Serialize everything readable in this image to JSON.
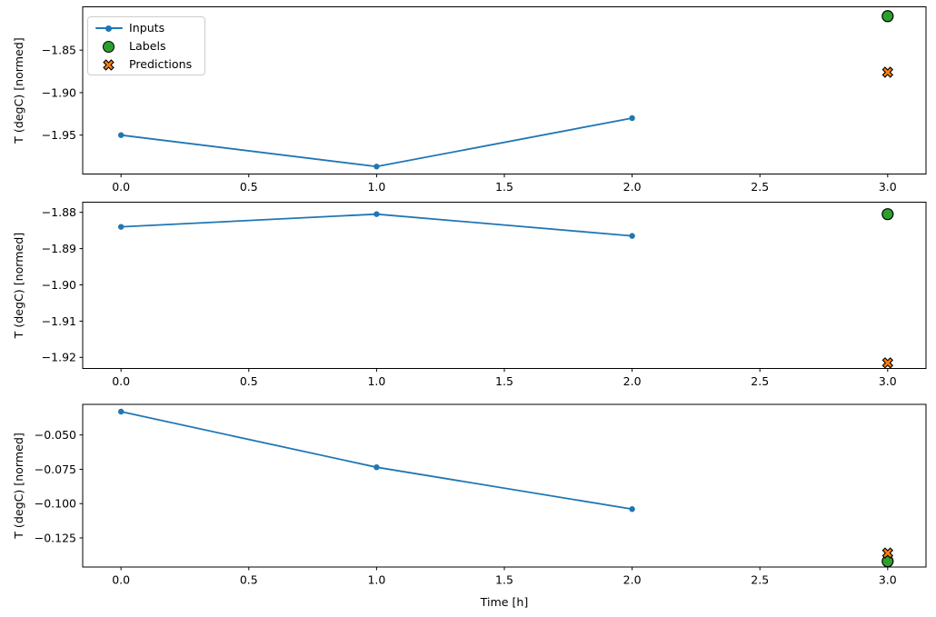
{
  "figure": {
    "xlabel": "Time [h]",
    "ylabel": "T (degC) [normed]",
    "background": "#ffffff"
  },
  "colors": {
    "inputs": "#1f77b4",
    "labels": "#2ca02c",
    "predictions": "#ff7f0e",
    "marker_edge": "#000000",
    "axis": "#000000",
    "legend_border": "#cccccc"
  },
  "legend": {
    "position": "upper left",
    "items": [
      {
        "label": "Inputs",
        "marker": "line-dot",
        "color_key": "inputs"
      },
      {
        "label": "Labels",
        "marker": "circle",
        "color_key": "labels"
      },
      {
        "label": "Predictions",
        "marker": "X",
        "color_key": "predictions"
      }
    ]
  },
  "chart_data": [
    {
      "type": "line",
      "title": "",
      "xlabel": "",
      "ylabel": "T (degC) [normed]",
      "xlim": [
        -0.15,
        3.15
      ],
      "ylim": [
        -1.996,
        -1.799
      ],
      "grid": false,
      "xticks": {
        "values": [
          0,
          0.5,
          1,
          1.5,
          2,
          2.5,
          3
        ],
        "labels": [
          "0.0",
          "0.5",
          "1.0",
          "1.5",
          "2.0",
          "2.5",
          "3.0"
        ]
      },
      "yticks": {
        "values": [
          -1.85,
          -1.9,
          -1.95
        ],
        "labels": [
          "−1.85",
          "−1.90",
          "−1.95"
        ]
      },
      "series": [
        {
          "name": "Inputs",
          "kind": "line",
          "marker": "dot",
          "color": "#1f77b4",
          "x": [
            0,
            1,
            2
          ],
          "y": [
            -1.95,
            -1.987,
            -1.93
          ]
        },
        {
          "name": "Labels",
          "kind": "scatter",
          "marker": "circle",
          "color": "#2ca02c",
          "x": [
            3
          ],
          "y": [
            -1.81
          ]
        },
        {
          "name": "Predictions",
          "kind": "scatter",
          "marker": "X",
          "color": "#ff7f0e",
          "x": [
            3
          ],
          "y": [
            -1.876
          ]
        }
      ]
    },
    {
      "type": "line",
      "title": "",
      "xlabel": "",
      "ylabel": "T (degC) [normed]",
      "xlim": [
        -0.15,
        3.15
      ],
      "ylim": [
        -1.9231,
        -1.8772
      ],
      "grid": false,
      "xticks": {
        "values": [
          0,
          0.5,
          1,
          1.5,
          2,
          2.5,
          3
        ],
        "labels": [
          "0.0",
          "0.5",
          "1.0",
          "1.5",
          "2.0",
          "2.5",
          "3.0"
        ]
      },
      "yticks": {
        "values": [
          -1.88,
          -1.89,
          -1.9,
          -1.91,
          -1.92
        ],
        "labels": [
          "−1.88",
          "−1.89",
          "−1.90",
          "−1.91",
          "−1.92"
        ]
      },
      "series": [
        {
          "name": "Inputs",
          "kind": "line",
          "marker": "dot",
          "color": "#1f77b4",
          "x": [
            0,
            1,
            2
          ],
          "y": [
            -1.884,
            -1.8805,
            -1.8865
          ]
        },
        {
          "name": "Labels",
          "kind": "scatter",
          "marker": "circle",
          "color": "#2ca02c",
          "x": [
            3
          ],
          "y": [
            -1.8805
          ]
        },
        {
          "name": "Predictions",
          "kind": "scatter",
          "marker": "X",
          "color": "#ff7f0e",
          "x": [
            3
          ],
          "y": [
            -1.9215
          ]
        }
      ]
    },
    {
      "type": "line",
      "title": "",
      "xlabel": "Time [h]",
      "ylabel": "T (degC) [normed]",
      "xlim": [
        -0.15,
        3.15
      ],
      "ylim": [
        -0.1462,
        -0.0277
      ],
      "grid": false,
      "xticks": {
        "values": [
          0,
          0.5,
          1,
          1.5,
          2,
          2.5,
          3
        ],
        "labels": [
          "0.0",
          "0.5",
          "1.0",
          "1.5",
          "2.0",
          "2.5",
          "3.0"
        ]
      },
      "yticks": {
        "values": [
          -0.05,
          -0.075,
          -0.1,
          -0.125
        ],
        "labels": [
          "−0.050",
          "−0.075",
          "−0.100",
          "−0.125"
        ]
      },
      "series": [
        {
          "name": "Inputs",
          "kind": "line",
          "marker": "dot",
          "color": "#1f77b4",
          "x": [
            0,
            1,
            2
          ],
          "y": [
            -0.033,
            -0.0735,
            -0.104
          ]
        },
        {
          "name": "Labels",
          "kind": "scatter",
          "marker": "circle",
          "color": "#2ca02c",
          "x": [
            3
          ],
          "y": [
            -0.142
          ]
        },
        {
          "name": "Predictions",
          "kind": "scatter",
          "marker": "X",
          "color": "#ff7f0e",
          "x": [
            3
          ],
          "y": [
            -0.136
          ]
        }
      ]
    }
  ]
}
